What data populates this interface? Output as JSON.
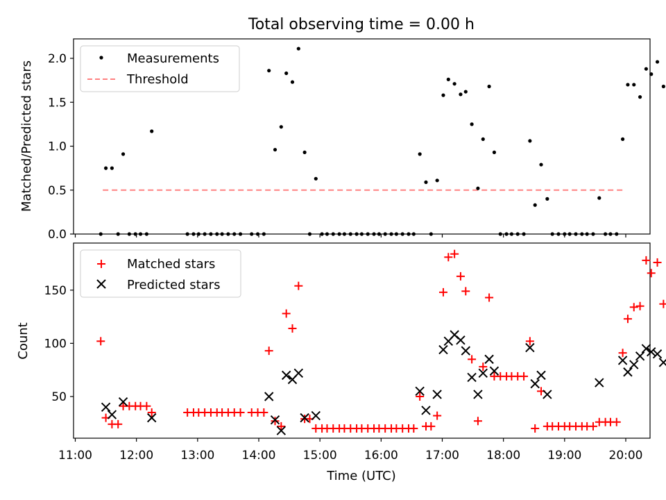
{
  "chart_data": [
    {
      "type": "scatter",
      "title": "Total observing time = 0.00 h",
      "xlabel": "",
      "ylabel": "Matched/Predicted stars",
      "xlim": [
        "11:00",
        "20:25"
      ],
      "ylim": [
        0,
        2.2
      ],
      "xticks": [
        "11:00",
        "12:00",
        "13:00",
        "14:00",
        "15:00",
        "16:00",
        "17:00",
        "18:00",
        "19:00",
        "20:00"
      ],
      "yticks": [
        "0.0",
        "0.5",
        "1.0",
        "1.5",
        "2.0"
      ],
      "legend_position": "upper left",
      "threshold": {
        "name": "Threshold",
        "value": 0.5,
        "x_range": [
          "11:27",
          "20:00"
        ],
        "color": "#ff8080",
        "style": "dashed"
      },
      "series": [
        {
          "name": "Measurements",
          "color": "#000000",
          "marker": "dot",
          "points": [
            [
              "11:25",
              0
            ],
            [
              "11:30",
              0.75
            ],
            [
              "11:36",
              0.75
            ],
            [
              "11:42",
              0
            ],
            [
              "11:47",
              0.91
            ],
            [
              "11:53",
              0
            ],
            [
              "11:59",
              0
            ],
            [
              "12:04",
              0
            ],
            [
              "12:10",
              0
            ],
            [
              "12:15",
              1.17
            ],
            [
              "12:50",
              0
            ],
            [
              "12:56",
              0
            ],
            [
              "13:01",
              0
            ],
            [
              "13:07",
              0
            ],
            [
              "13:13",
              0
            ],
            [
              "13:19",
              0
            ],
            [
              "13:24",
              0
            ],
            [
              "13:30",
              0
            ],
            [
              "13:36",
              0
            ],
            [
              "13:42",
              0
            ],
            [
              "13:53",
              0
            ],
            [
              "13:59",
              0
            ],
            [
              "14:05",
              0
            ],
            [
              "14:10",
              1.86
            ],
            [
              "14:16",
              0.96
            ],
            [
              "14:22",
              1.22
            ],
            [
              "14:27",
              1.83
            ],
            [
              "14:33",
              1.73
            ],
            [
              "14:39",
              2.11
            ],
            [
              "14:45",
              0.93
            ],
            [
              "14:50",
              0
            ],
            [
              "14:56",
              0.63
            ],
            [
              "15:02",
              0
            ],
            [
              "15:07",
              0
            ],
            [
              "15:13",
              0
            ],
            [
              "15:19",
              0
            ],
            [
              "15:24",
              0
            ],
            [
              "15:30",
              0
            ],
            [
              "15:36",
              0
            ],
            [
              "15:41",
              0
            ],
            [
              "15:47",
              0
            ],
            [
              "15:53",
              0
            ],
            [
              "15:58",
              0
            ],
            [
              "16:04",
              0
            ],
            [
              "16:10",
              0
            ],
            [
              "16:15",
              0
            ],
            [
              "16:21",
              0
            ],
            [
              "16:27",
              0
            ],
            [
              "16:32",
              0
            ],
            [
              "16:38",
              0.91
            ],
            [
              "16:44",
              0.59
            ],
            [
              "16:49",
              0
            ],
            [
              "16:55",
              0.61
            ],
            [
              "17:01",
              1.58
            ],
            [
              "17:06",
              1.76
            ],
            [
              "17:12",
              1.71
            ],
            [
              "17:18",
              1.59
            ],
            [
              "17:23",
              1.62
            ],
            [
              "17:29",
              1.25
            ],
            [
              "17:35",
              0.52
            ],
            [
              "17:40",
              1.08
            ],
            [
              "17:46",
              1.68
            ],
            [
              "17:51",
              0.93
            ],
            [
              "17:57",
              0
            ],
            [
              "18:03",
              0
            ],
            [
              "18:08",
              0
            ],
            [
              "18:14",
              0
            ],
            [
              "18:20",
              0
            ],
            [
              "18:26",
              1.06
            ],
            [
              "18:31",
              0.33
            ],
            [
              "18:37",
              0.79
            ],
            [
              "18:43",
              0.4
            ],
            [
              "18:48",
              0
            ],
            [
              "18:54",
              0
            ],
            [
              "19:00",
              0
            ],
            [
              "19:05",
              0
            ],
            [
              "19:11",
              0
            ],
            [
              "19:17",
              0
            ],
            [
              "19:22",
              0
            ],
            [
              "19:28",
              0
            ],
            [
              "19:34",
              0.41
            ],
            [
              "19:40",
              0
            ],
            [
              "19:45",
              0
            ],
            [
              "19:51",
              0
            ],
            [
              "19:57",
              1.08
            ],
            [
              "20:02",
              1.7
            ],
            [
              "20:08",
              1.7
            ],
            [
              "20:14",
              1.56
            ],
            [
              "20:20",
              1.88
            ],
            [
              "20:25",
              1.82
            ],
            [
              "20:31",
              1.96
            ],
            [
              "20:37",
              1.68
            ]
          ]
        }
      ]
    },
    {
      "type": "scatter",
      "title": "",
      "xlabel": "Time (UTC)",
      "ylabel": "Count",
      "xlim": [
        "11:00",
        "20:25"
      ],
      "ylim": [
        10,
        190
      ],
      "xticks": [
        "11:00",
        "12:00",
        "13:00",
        "14:00",
        "15:00",
        "16:00",
        "17:00",
        "18:00",
        "19:00",
        "20:00"
      ],
      "yticks": [
        "50",
        "100",
        "150"
      ],
      "legend_position": "upper left",
      "series": [
        {
          "name": "Matched stars",
          "color": "#ff0000",
          "marker": "plus",
          "points": [
            [
              "11:25",
              102
            ],
            [
              "11:30",
              30
            ],
            [
              "11:36",
              24
            ],
            [
              "11:42",
              24
            ],
            [
              "11:47",
              41
            ],
            [
              "11:53",
              41
            ],
            [
              "11:59",
              41
            ],
            [
              "12:04",
              41
            ],
            [
              "12:10",
              41
            ],
            [
              "12:15",
              35
            ],
            [
              "12:50",
              35
            ],
            [
              "12:56",
              35
            ],
            [
              "13:01",
              35
            ],
            [
              "13:07",
              35
            ],
            [
              "13:13",
              35
            ],
            [
              "13:19",
              35
            ],
            [
              "13:24",
              35
            ],
            [
              "13:30",
              35
            ],
            [
              "13:36",
              35
            ],
            [
              "13:42",
              35
            ],
            [
              "13:53",
              35
            ],
            [
              "13:59",
              35
            ],
            [
              "14:05",
              35
            ],
            [
              "14:10",
              93
            ],
            [
              "14:16",
              27
            ],
            [
              "14:22",
              22
            ],
            [
              "14:27",
              128
            ],
            [
              "14:33",
              114
            ],
            [
              "14:39",
              154
            ],
            [
              "14:45",
              29
            ],
            [
              "14:50",
              29
            ],
            [
              "14:56",
              20
            ],
            [
              "15:02",
              20
            ],
            [
              "15:07",
              20
            ],
            [
              "15:13",
              20
            ],
            [
              "15:19",
              20
            ],
            [
              "15:24",
              20
            ],
            [
              "15:30",
              20
            ],
            [
              "15:36",
              20
            ],
            [
              "15:41",
              20
            ],
            [
              "15:47",
              20
            ],
            [
              "15:53",
              20
            ],
            [
              "15:58",
              20
            ],
            [
              "16:04",
              20
            ],
            [
              "16:10",
              20
            ],
            [
              "16:15",
              20
            ],
            [
              "16:21",
              20
            ],
            [
              "16:27",
              20
            ],
            [
              "16:32",
              20
            ],
            [
              "16:38",
              50
            ],
            [
              "16:44",
              22
            ],
            [
              "16:49",
              22
            ],
            [
              "16:55",
              32
            ],
            [
              "17:01",
              148
            ],
            [
              "17:06",
              181
            ],
            [
              "17:12",
              184
            ],
            [
              "17:18",
              163
            ],
            [
              "17:23",
              149
            ],
            [
              "17:29",
              85
            ],
            [
              "17:35",
              27
            ],
            [
              "17:40",
              78
            ],
            [
              "17:46",
              143
            ],
            [
              "17:51",
              69
            ],
            [
              "17:57",
              69
            ],
            [
              "18:03",
              69
            ],
            [
              "18:08",
              69
            ],
            [
              "18:14",
              69
            ],
            [
              "18:20",
              69
            ],
            [
              "18:26",
              102
            ],
            [
              "18:31",
              20
            ],
            [
              "18:37",
              55
            ],
            [
              "18:43",
              22
            ],
            [
              "18:48",
              22
            ],
            [
              "18:54",
              22
            ],
            [
              "19:00",
              22
            ],
            [
              "19:05",
              22
            ],
            [
              "19:11",
              22
            ],
            [
              "19:17",
              22
            ],
            [
              "19:22",
              22
            ],
            [
              "19:28",
              22
            ],
            [
              "19:34",
              26
            ],
            [
              "19:40",
              26
            ],
            [
              "19:45",
              26
            ],
            [
              "19:51",
              26
            ],
            [
              "19:57",
              91
            ],
            [
              "20:02",
              123
            ],
            [
              "20:08",
              134
            ],
            [
              "20:14",
              135
            ],
            [
              "20:20",
              178
            ],
            [
              "20:25",
              166
            ],
            [
              "20:31",
              176
            ],
            [
              "20:37",
              137
            ]
          ]
        },
        {
          "name": "Predicted stars",
          "color": "#000000",
          "marker": "x",
          "points": [
            [
              "11:30",
              40
            ],
            [
              "11:36",
              33
            ],
            [
              "11:47",
              45
            ],
            [
              "12:15",
              30
            ],
            [
              "14:10",
              50
            ],
            [
              "14:16",
              28
            ],
            [
              "14:22",
              18
            ],
            [
              "14:27",
              70
            ],
            [
              "14:33",
              66
            ],
            [
              "14:39",
              72
            ],
            [
              "14:45",
              30
            ],
            [
              "14:56",
              32
            ],
            [
              "16:38",
              55
            ],
            [
              "16:44",
              37
            ],
            [
              "16:55",
              52
            ],
            [
              "17:01",
              94
            ],
            [
              "17:06",
              102
            ],
            [
              "17:12",
              108
            ],
            [
              "17:18",
              103
            ],
            [
              "17:23",
              93
            ],
            [
              "17:29",
              68
            ],
            [
              "17:35",
              52
            ],
            [
              "17:40",
              72
            ],
            [
              "17:46",
              85
            ],
            [
              "17:51",
              74
            ],
            [
              "18:26",
              96
            ],
            [
              "18:31",
              62
            ],
            [
              "18:37",
              70
            ],
            [
              "18:43",
              52
            ],
            [
              "19:34",
              63
            ],
            [
              "19:57",
              84
            ],
            [
              "20:02",
              73
            ],
            [
              "20:08",
              80
            ],
            [
              "20:14",
              88
            ],
            [
              "20:20",
              95
            ],
            [
              "20:25",
              92
            ],
            [
              "20:31",
              90
            ],
            [
              "20:37",
              82
            ]
          ]
        }
      ]
    }
  ]
}
